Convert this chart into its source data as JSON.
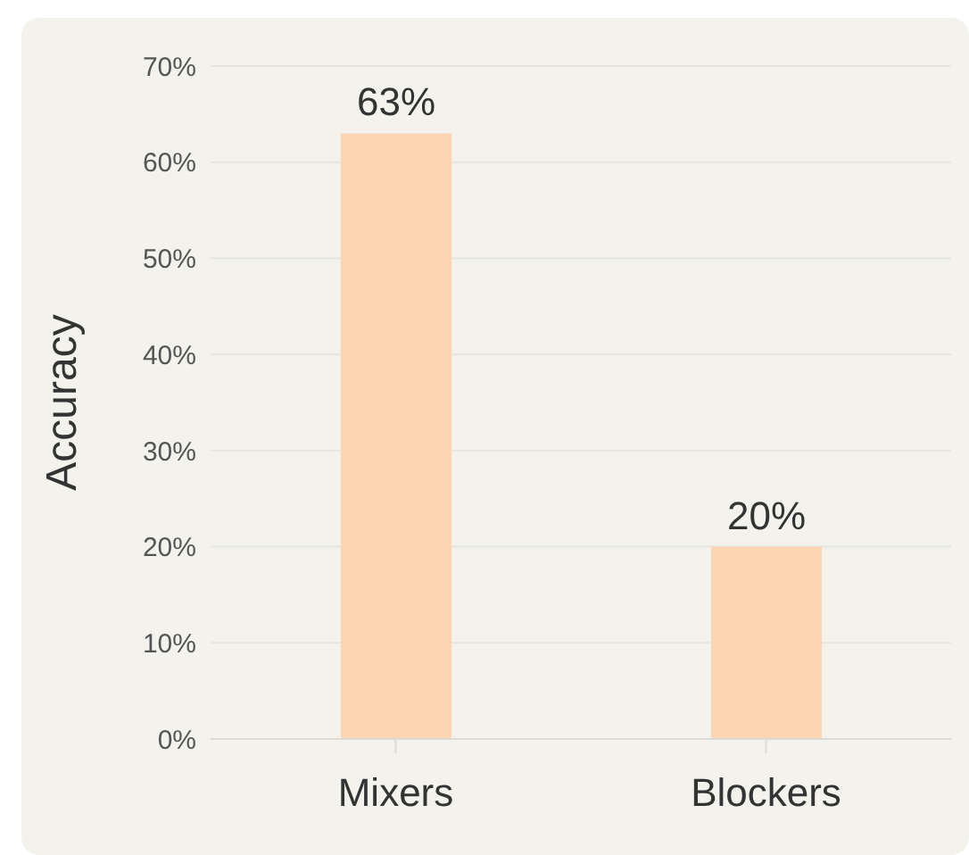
{
  "chart_data": {
    "type": "bar",
    "ylabel": "Accuracy",
    "categories": [
      "Mixers",
      "Blockers"
    ],
    "values": [
      63,
      20
    ],
    "color": "#fdd5b3",
    "value_labels": [
      "63%",
      "20%"
    ],
    "ylim": [
      0,
      70
    ],
    "yticks": [
      {
        "value": 0,
        "label": "0%"
      },
      {
        "value": 10,
        "label": "10%"
      },
      {
        "value": 20,
        "label": "20%"
      },
      {
        "value": 30,
        "label": "30%"
      },
      {
        "value": 40,
        "label": "40%"
      },
      {
        "value": 50,
        "label": "50%"
      },
      {
        "value": 60,
        "label": "60%"
      },
      {
        "value": 70,
        "label": "70%"
      }
    ],
    "grid": "y",
    "legend": false
  }
}
